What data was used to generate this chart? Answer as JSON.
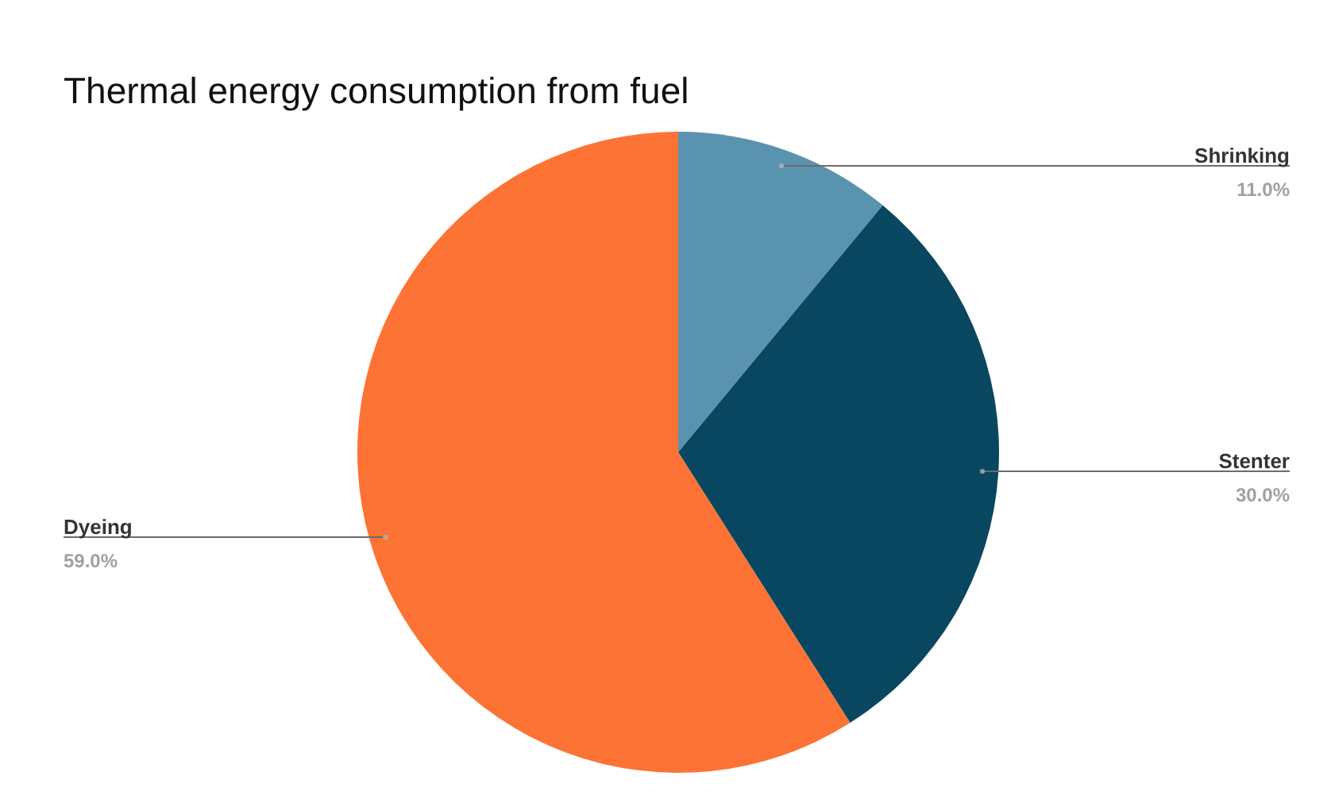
{
  "chart_data": {
    "type": "pie",
    "title": "Thermal energy consumption from fuel",
    "categories": [
      "Shrinking",
      "Stenter",
      "Dyeing"
    ],
    "values": [
      11,
      30,
      59
    ],
    "value_labels": [
      "11.0%",
      "30.0%",
      "59.0%"
    ],
    "colors": [
      "#5a93b0",
      "#08475f",
      "#fd7235"
    ],
    "legend": false
  }
}
